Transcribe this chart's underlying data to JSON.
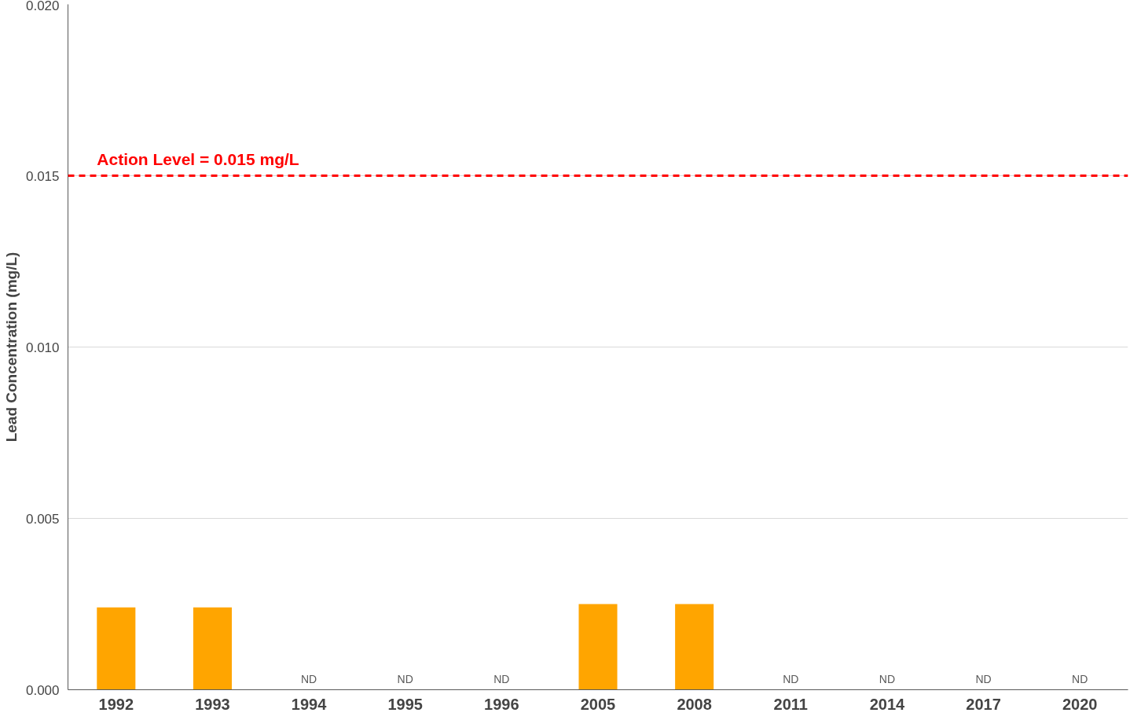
{
  "chart_data": {
    "type": "bar",
    "ylabel": "Lead Concentration (mg/L)",
    "categories": [
      "1992",
      "1993",
      "1994",
      "1995",
      "1996",
      "2005",
      "2008",
      "2011",
      "2014",
      "2017",
      "2020"
    ],
    "values": [
      0.0024,
      0.0024,
      null,
      null,
      null,
      0.0025,
      0.0025,
      null,
      null,
      null,
      null
    ],
    "value_labels": [
      null,
      null,
      "ND",
      "ND",
      "ND",
      null,
      null,
      "ND",
      "ND",
      "ND",
      "ND"
    ],
    "color": "#ffa500",
    "ylim": [
      0,
      0.02
    ],
    "yticks": [
      {
        "value": 0,
        "label": "0.000"
      },
      0.005,
      {
        "value": 0.01,
        "label": "0.010"
      },
      0.015,
      {
        "value": 0.02,
        "label": "0.020"
      }
    ],
    "grid": "y",
    "ref_lines": [
      {
        "axis": "y",
        "value": 0.015,
        "label": "Action Level  = 0.015 mg/L",
        "color": "#ff0000",
        "line_style": "dashed"
      }
    ]
  }
}
